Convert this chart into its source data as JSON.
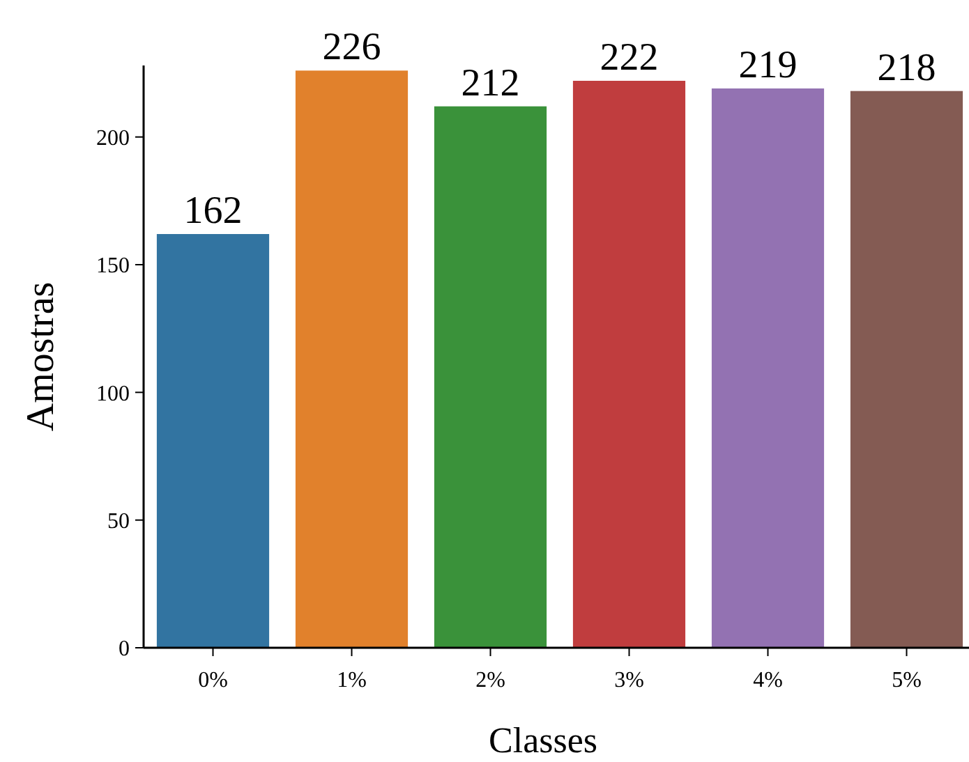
{
  "chart_data": {
    "type": "bar",
    "xlabel": "Classes",
    "ylabel": "Amostras",
    "categories": [
      "0%",
      "1%",
      "2%",
      "3%",
      "4%",
      "5%"
    ],
    "values": [
      162,
      226,
      212,
      222,
      219,
      218
    ],
    "colors": [
      "#3274a1",
      "#e1812c",
      "#3a923a",
      "#c03d3e",
      "#9372b2",
      "#845b53"
    ],
    "ylim": [
      0,
      228
    ],
    "yticks": [
      0,
      50,
      100,
      150,
      200
    ],
    "data_labels": true,
    "grid": false
  }
}
